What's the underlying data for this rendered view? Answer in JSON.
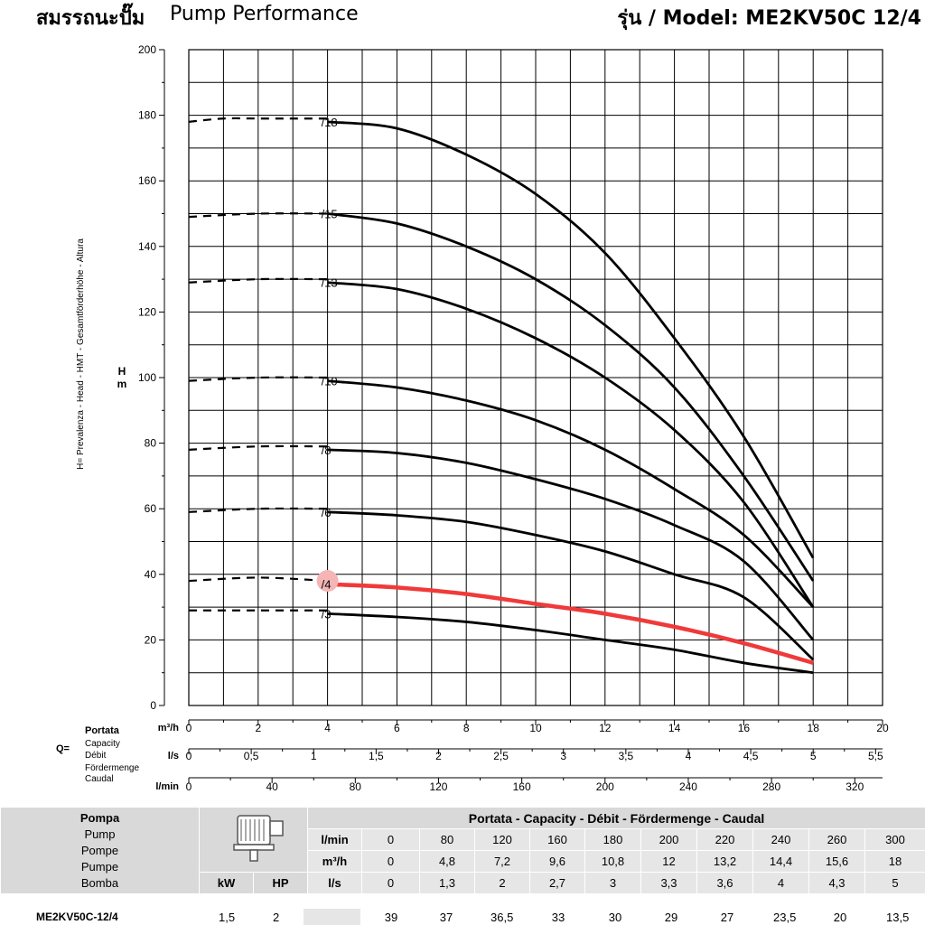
{
  "header": {
    "thai_title": "สมรรถนะปั๊ม",
    "title": "Pump Performance",
    "model": "รุ่น / Model: ME2KV50C 12/4"
  },
  "chart_data": {
    "type": "line",
    "ylabel_unit": "H\nm",
    "ylabel": "H= Prevalenza - Head - HMT - Gesamtförderhöhe - Altura",
    "ylim": [
      0,
      200
    ],
    "yticks": [
      "0",
      "20",
      "40",
      "60",
      "80",
      "100",
      "120",
      "140",
      "160",
      "180",
      "200"
    ],
    "xaxes": [
      {
        "unit": "m³/h",
        "ticks": [
          "0",
          "2",
          "4",
          "6",
          "8",
          "10",
          "12",
          "14",
          "16",
          "18",
          "20"
        ]
      },
      {
        "unit": "l/s",
        "ticks": [
          "0",
          "0,5",
          "1",
          "1,5",
          "2",
          "2,5",
          "3",
          "3,5",
          "4",
          "4,5",
          "5",
          "5,5"
        ]
      },
      {
        "unit": "l/min",
        "ticks": [
          "0",
          "40",
          "80",
          "120",
          "160",
          "200",
          "240",
          "280",
          "320"
        ]
      }
    ],
    "q_label": "Q=",
    "q_names": [
      "Portata",
      "Capacity",
      "Débit",
      "Fördermenge",
      "Caudal"
    ],
    "xlim_m3h": [
      0,
      20
    ],
    "grid": true,
    "series": [
      {
        "name": "/18",
        "color": "#000000",
        "dashed": [
          [
            0,
            178
          ],
          [
            1,
            179
          ],
          [
            2,
            179
          ],
          [
            3,
            179
          ],
          [
            4,
            179
          ]
        ],
        "x": [
          4,
          6,
          8,
          10,
          12,
          14,
          16,
          18
        ],
        "y": [
          178,
          176,
          168,
          156,
          138,
          112,
          82,
          45
        ],
        "y_end": 82
      },
      {
        "name": "/15",
        "color": "#000000",
        "dashed": [
          [
            0,
            149
          ],
          [
            2,
            150
          ],
          [
            4,
            150
          ]
        ],
        "x": [
          4,
          6,
          8,
          10,
          12,
          14,
          16,
          18
        ],
        "y": [
          150,
          147,
          140,
          130,
          116,
          97,
          70,
          38
        ]
      },
      {
        "name": "/13",
        "color": "#000000",
        "dashed": [
          [
            0,
            129
          ],
          [
            2,
            130
          ],
          [
            4,
            130
          ]
        ],
        "x": [
          4,
          6,
          8,
          10,
          12,
          14,
          16,
          18
        ],
        "y": [
          129,
          127,
          121,
          112,
          100,
          84,
          62,
          30
        ]
      },
      {
        "name": "/10",
        "color": "#000000",
        "dashed": [
          [
            0,
            99
          ],
          [
            2,
            100
          ],
          [
            4,
            100
          ]
        ],
        "x": [
          4,
          6,
          8,
          10,
          12,
          14,
          16,
          18
        ],
        "y": [
          99,
          97,
          93,
          87,
          78,
          66,
          52,
          30
        ]
      },
      {
        "name": "/8",
        "color": "#000000",
        "dashed": [
          [
            0,
            78
          ],
          [
            2,
            79
          ],
          [
            4,
            79
          ]
        ],
        "x": [
          4,
          6,
          8,
          10,
          12,
          14,
          16,
          18
        ],
        "y": [
          78,
          77,
          74,
          69,
          63,
          55,
          44,
          20
        ]
      },
      {
        "name": "/6",
        "color": "#000000",
        "dashed": [
          [
            0,
            59
          ],
          [
            2,
            60
          ],
          [
            4,
            60
          ]
        ],
        "x": [
          4,
          6,
          8,
          10,
          12,
          14,
          16,
          18
        ],
        "y": [
          59,
          58,
          56,
          52,
          47,
          40,
          33,
          14
        ]
      },
      {
        "name": "/4",
        "color": "#f03a3a",
        "dashed": [
          [
            0,
            38
          ],
          [
            2,
            39
          ],
          [
            4,
            38
          ]
        ],
        "x": [
          4,
          6,
          8,
          10,
          12,
          14,
          16,
          18
        ],
        "y": [
          37,
          36,
          34,
          31,
          28,
          24,
          19,
          13
        ]
      },
      {
        "name": "/3",
        "color": "#000000",
        "dashed": [
          [
            0,
            29
          ],
          [
            2,
            29
          ],
          [
            4,
            29
          ]
        ],
        "x": [
          4,
          6,
          8,
          10,
          12,
          14,
          16,
          18
        ],
        "y": [
          28,
          27,
          25.5,
          23,
          20,
          17,
          13,
          10
        ]
      }
    ]
  },
  "table": {
    "pompa_names": [
      "Pompa",
      "Pump",
      "Pompe",
      "Pumpe",
      "Bomba"
    ],
    "kw_label": "kW",
    "hp_label": "HP",
    "capacity_header": "Portata - Capacity - Débit - Fördermenge - Caudal",
    "rows": [
      {
        "unit": "l/min",
        "values": [
          "0",
          "80",
          "120",
          "160",
          "180",
          "200",
          "220",
          "240",
          "260",
          "300"
        ]
      },
      {
        "unit": "m³/h",
        "values": [
          "0",
          "4,8",
          "7,2",
          "9,6",
          "10,8",
          "12",
          "13,2",
          "14,4",
          "15,6",
          "18"
        ]
      },
      {
        "unit": "l/s",
        "values": [
          "0",
          "1,3",
          "2",
          "2,7",
          "3",
          "3,3",
          "3,6",
          "4",
          "4,3",
          "5"
        ]
      }
    ],
    "model_row": {
      "model": "ME2KV50C-12/4",
      "kw": "1,5",
      "hp": "2",
      "values": [
        "39",
        "37",
        "36,5",
        "33",
        "30",
        "29",
        "27",
        "23,5",
        "20",
        "13,5"
      ]
    }
  }
}
